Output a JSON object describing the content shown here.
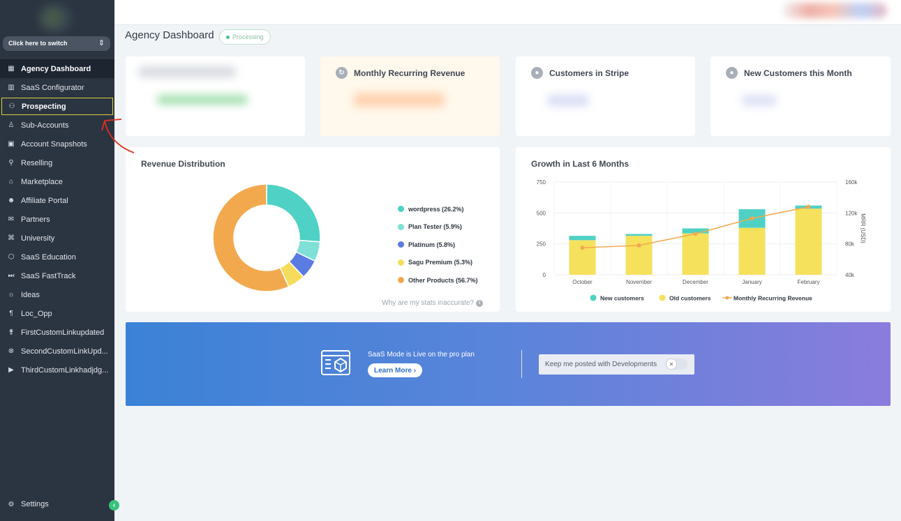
{
  "sidebar": {
    "switcher_label": "Click here to switch",
    "items": [
      {
        "label": "Agency Dashboard",
        "icon": "dashboard-icon"
      },
      {
        "label": "SaaS Configurator",
        "icon": "chart-icon"
      },
      {
        "label": "Prospecting",
        "icon": "users-icon"
      },
      {
        "label": "Sub-Accounts",
        "icon": "user-icon"
      },
      {
        "label": "Account Snapshots",
        "icon": "snapshot-icon"
      },
      {
        "label": "Reselling",
        "icon": "hierarchy-icon"
      },
      {
        "label": "Marketplace",
        "icon": "bag-icon"
      },
      {
        "label": "Affiliate Portal",
        "icon": "group-icon"
      },
      {
        "label": "Partners",
        "icon": "handshake-icon"
      },
      {
        "label": "University",
        "icon": "graduation-icon"
      },
      {
        "label": "SaaS Education",
        "icon": "box-icon"
      },
      {
        "label": "SaaS FastTrack",
        "icon": "fast-forward-icon"
      },
      {
        "label": "Ideas",
        "icon": "bulb-icon"
      },
      {
        "label": "Loc_Opp",
        "icon": "text-icon"
      },
      {
        "label": "FirstCustomLinkupdated",
        "icon": "walking-icon"
      },
      {
        "label": "SecondCustomLinkUpd...",
        "icon": "xbox-icon"
      },
      {
        "label": "ThirdCustomLinkhadjdg...",
        "icon": "youtube-icon"
      }
    ],
    "settings_label": "Settings"
  },
  "header": {
    "title": "Agency Dashboard",
    "status": "Processing"
  },
  "stats": {
    "mrr_title": "Monthly Recurring Revenue",
    "customers_title": "Customers in Stripe",
    "new_customers_title": "New Customers this Month"
  },
  "revenue": {
    "title": "Revenue Distribution",
    "note": "Why are my stats inaccurate?"
  },
  "growth": {
    "title": "Growth in Last 6 Months"
  },
  "chart_data": [
    {
      "type": "pie",
      "title": "Revenue Distribution",
      "labels": [
        "wordpress (26.2%)",
        "Plan Tester (5.9%)",
        "Platinum (5.8%)",
        "Sagu Premium (5.3%)",
        "Other Products (56.7%)"
      ],
      "values": [
        26.2,
        5.9,
        5.8,
        5.3,
        56.7
      ],
      "colors": [
        "#4fd1c5",
        "#7ee0d6",
        "#5b7be0",
        "#f6dc5c",
        "#f2a94e"
      ]
    },
    {
      "type": "bar",
      "title": "Growth in Last 6 Months",
      "categories": [
        "October",
        "November",
        "December",
        "January",
        "February"
      ],
      "series": [
        {
          "name": "Old customers",
          "values": [
            280,
            315,
            335,
            380,
            535
          ],
          "color": "#f6e15c"
        },
        {
          "name": "New customers",
          "values": [
            35,
            15,
            40,
            150,
            25
          ],
          "color": "#4fd1c5"
        },
        {
          "name": "Monthly Recurring Revenue",
          "values": [
            75000,
            78000,
            93000,
            113000,
            128000
          ],
          "color": "#f2a94e",
          "axis": "right",
          "kind": "line"
        }
      ],
      "left_ticks": [
        "0",
        "250",
        "500",
        "750"
      ],
      "right_ticks": [
        "40k",
        "80k",
        "120k",
        "160k"
      ],
      "ylim": [
        0,
        750
      ],
      "y2lim": [
        40000,
        160000
      ],
      "y2label": "MRR (USD)"
    }
  ],
  "banner": {
    "text": "SaaS Mode is Live on the pro plan",
    "button": "Learn More",
    "notify": "Keep me posted with Developments"
  }
}
